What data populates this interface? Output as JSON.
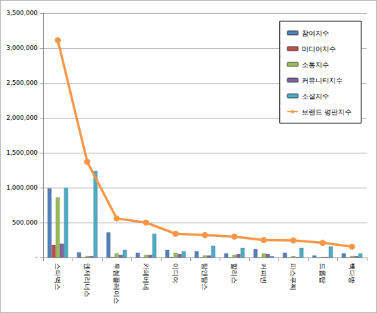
{
  "chart_data": {
    "type": "bar",
    "categories": [
      "스타벅스",
      "엔제리너스",
      "투썸플레이스",
      "카페베네",
      "이디야",
      "탐앤탐스",
      "할리스",
      "커피빈",
      "파스쿠찌",
      "드롭탑",
      "빽다방"
    ],
    "series": [
      {
        "name": "참여지수",
        "type": "bar",
        "color": "#4f81bd",
        "values": [
          990000,
          75000,
          360000,
          70000,
          110000,
          90000,
          60000,
          120000,
          70000,
          30000,
          60000
        ]
      },
      {
        "name": "미디어지수",
        "type": "bar",
        "color": "#c0504d",
        "values": [
          180000,
          5000,
          10000,
          5000,
          10000,
          5000,
          5000,
          5000,
          5000,
          3000,
          3000
        ]
      },
      {
        "name": "소통지수",
        "type": "bar",
        "color": "#9bbb59",
        "values": [
          860000,
          20000,
          60000,
          40000,
          70000,
          30000,
          40000,
          60000,
          20000,
          10000,
          20000
        ]
      },
      {
        "name": "커뮤니티지수",
        "type": "bar",
        "color": "#8064a2",
        "values": [
          200000,
          20000,
          40000,
          40000,
          50000,
          30000,
          50000,
          50000,
          10000,
          10000,
          20000
        ]
      },
      {
        "name": "소셜지수",
        "type": "bar",
        "color": "#4bacc6",
        "values": [
          1000000,
          1240000,
          110000,
          340000,
          90000,
          170000,
          140000,
          20000,
          140000,
          160000,
          60000
        ]
      },
      {
        "name": "브랜드 평판지수",
        "type": "line",
        "color": "#f79646",
        "marker": "circle",
        "values": [
          3110000,
          1370000,
          560000,
          500000,
          340000,
          320000,
          300000,
          250000,
          245000,
          210000,
          155000
        ]
      }
    ],
    "ylim": [
      0,
      3500000
    ],
    "yticks": [
      {
        "value": 0,
        "label": "-"
      },
      {
        "value": 500000,
        "label": "500,000"
      },
      {
        "value": 1000000,
        "label": "1,000,000"
      },
      {
        "value": 1500000,
        "label": "1,500,000"
      },
      {
        "value": 2000000,
        "label": "2,000,000"
      },
      {
        "value": 2500000,
        "label": "2,500,000"
      },
      {
        "value": 3000000,
        "label": "3,000,000"
      },
      {
        "value": 3500000,
        "label": "3,500,000"
      }
    ],
    "grid": true,
    "legend": "top-right"
  }
}
